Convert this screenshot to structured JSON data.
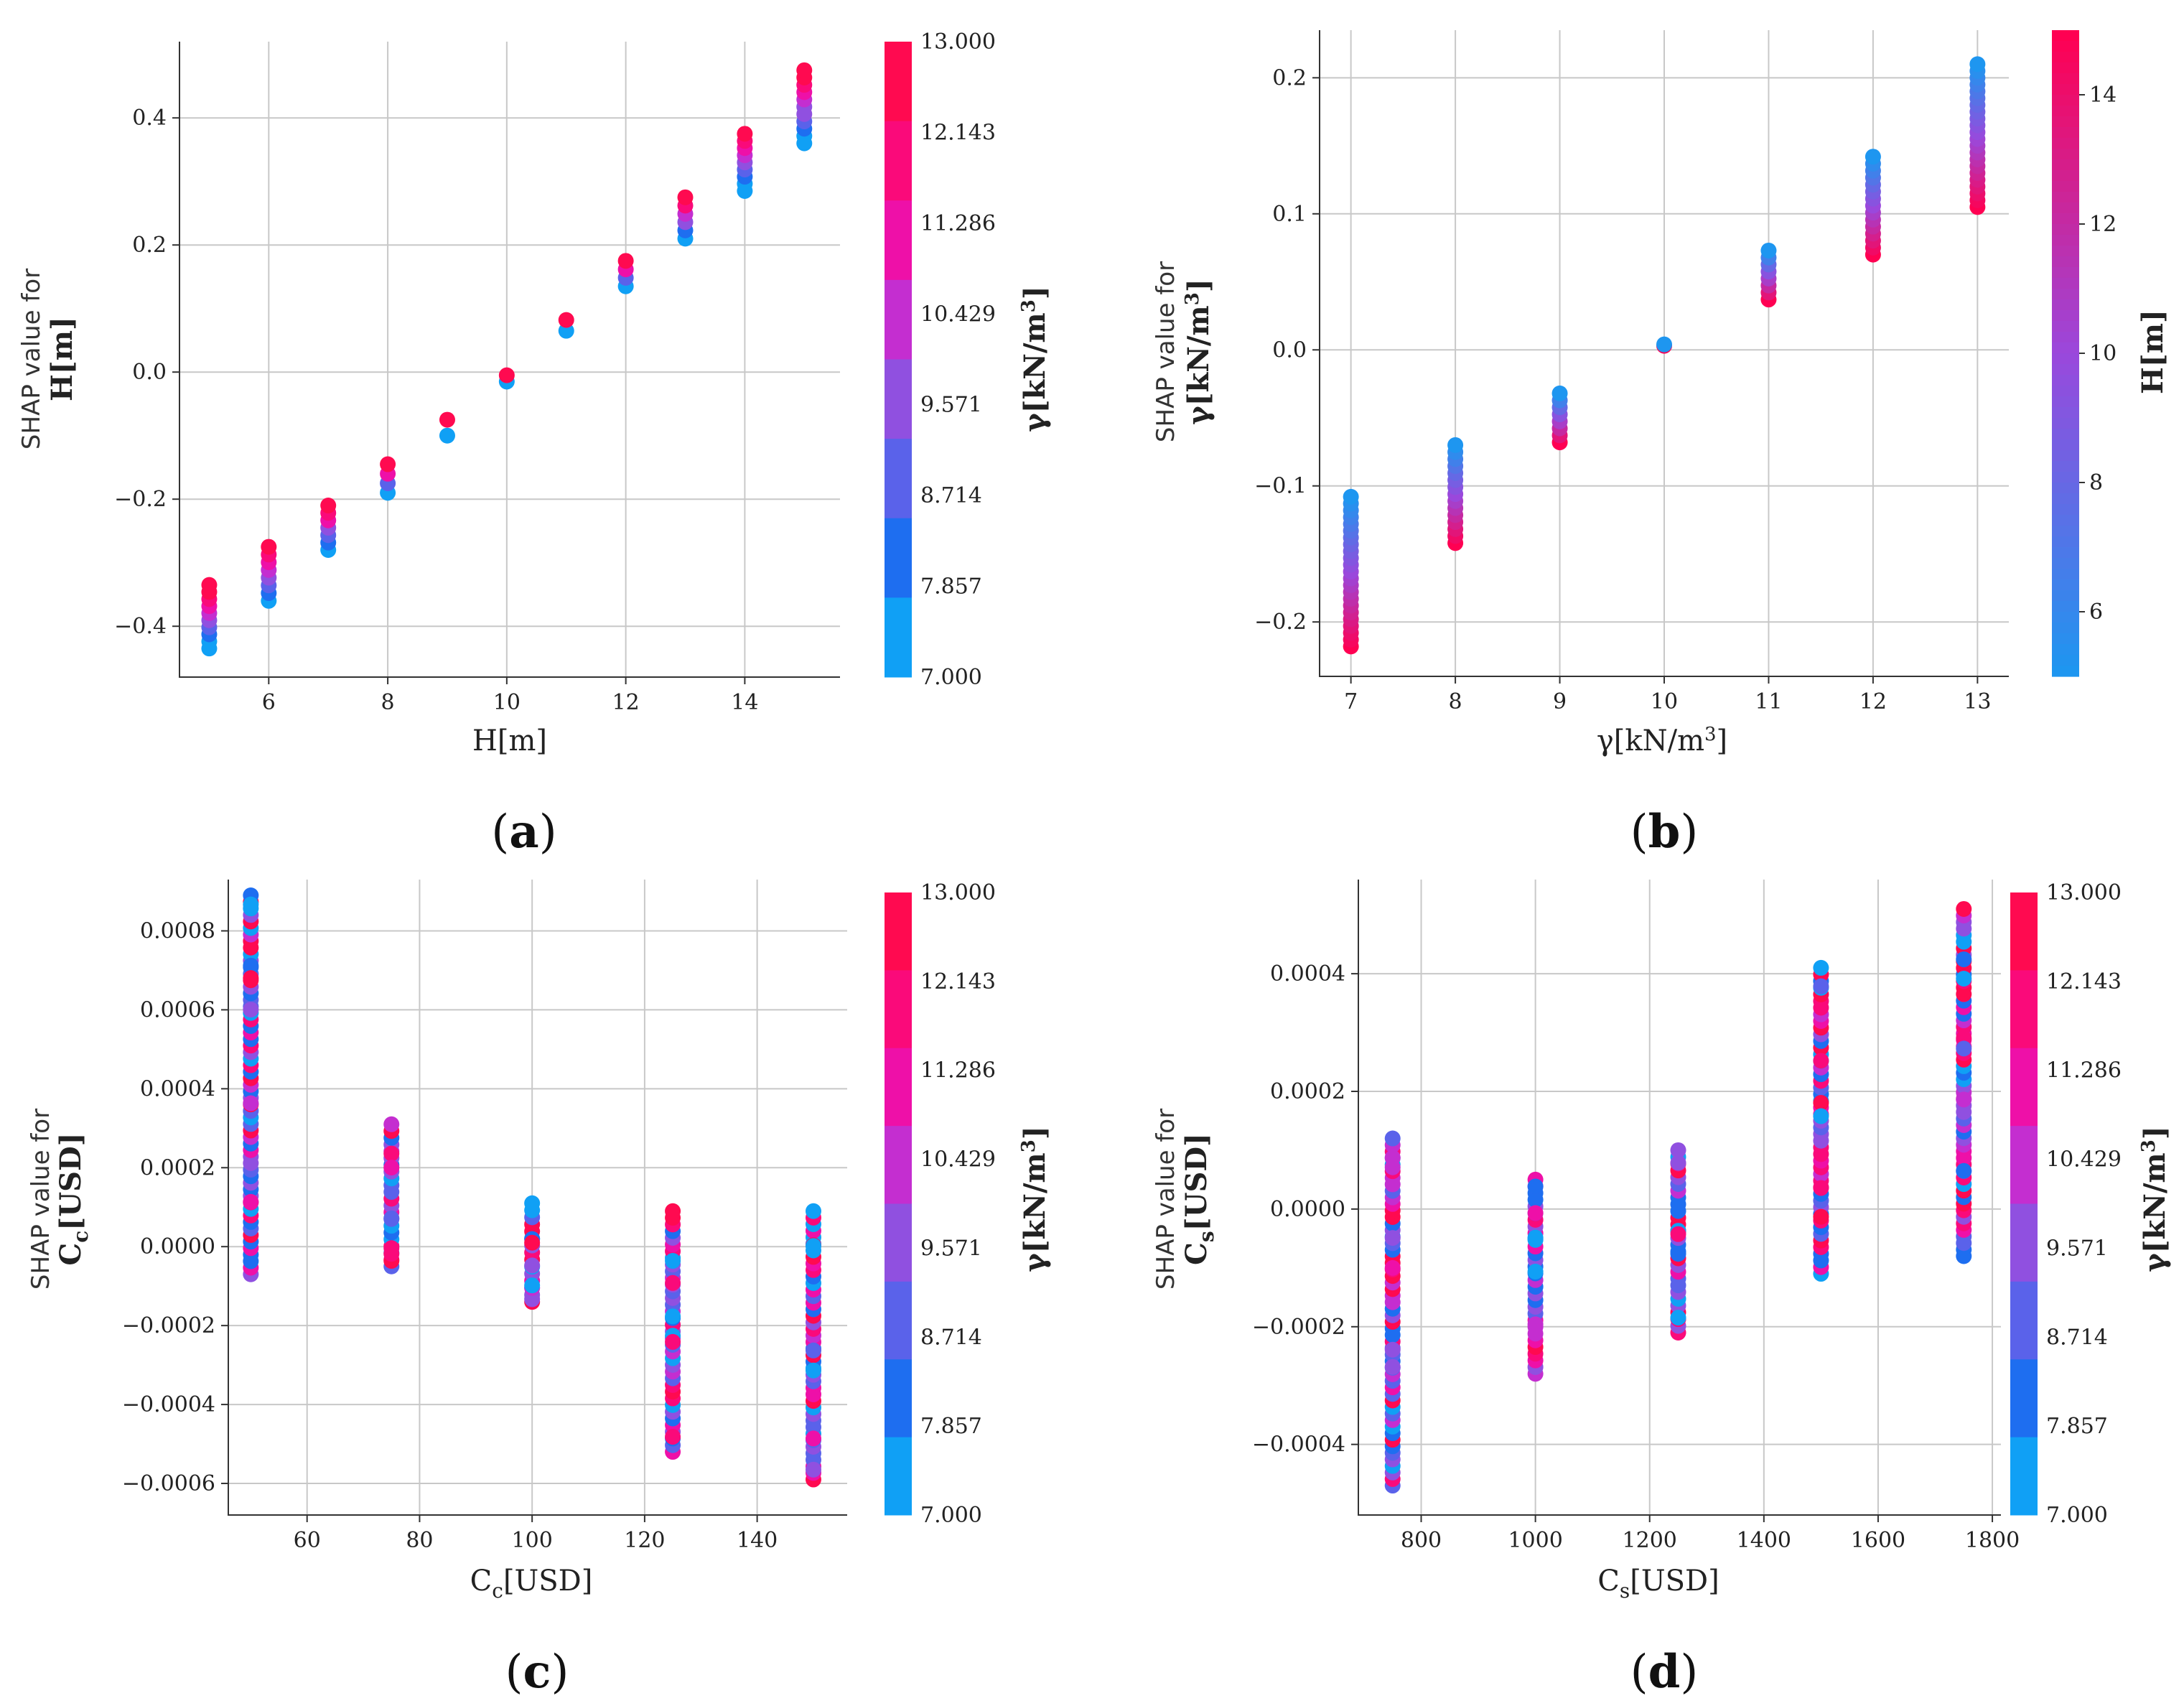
{
  "chart_data": [
    {
      "type": "scatter",
      "panel_label": "a",
      "xlabel": "H[m]",
      "ylabel": [
        "SHAP value for",
        "H[m]"
      ],
      "xlim": [
        4.5,
        15.6
      ],
      "ylim": [
        -0.48,
        0.52
      ],
      "xticks": [
        6,
        8,
        10,
        12,
        14
      ],
      "yticks": [
        -0.4,
        -0.2,
        0.0,
        0.2,
        0.4
      ],
      "ytick_labels": [
        "−0.4",
        "−0.2",
        "0.0",
        "0.2",
        "0.4"
      ],
      "grid": true,
      "color_trend": "high_top",
      "columns": [
        {
          "x": 5,
          "ymin": -0.435,
          "ymax": -0.335
        },
        {
          "x": 6,
          "ymin": -0.36,
          "ymax": -0.275
        },
        {
          "x": 7,
          "ymin": -0.28,
          "ymax": -0.21
        },
        {
          "x": 8,
          "ymin": -0.19,
          "ymax": -0.145
        },
        {
          "x": 9,
          "ymin": -0.1,
          "ymax": -0.075
        },
        {
          "x": 10,
          "ymin": -0.015,
          "ymax": -0.005
        },
        {
          "x": 11,
          "ymin": 0.065,
          "ymax": 0.082
        },
        {
          "x": 12,
          "ymin": 0.135,
          "ymax": 0.175
        },
        {
          "x": 13,
          "ymin": 0.21,
          "ymax": 0.275
        },
        {
          "x": 14,
          "ymin": 0.285,
          "ymax": 0.375
        },
        {
          "x": 15,
          "ymin": 0.36,
          "ymax": 0.475
        }
      ],
      "colorbar": {
        "label": "γ[kN/m³]",
        "label_main": "γ[kN/m",
        "label_sup": "3",
        "label_end": "]",
        "ticks": [
          "13.000",
          "12.143",
          "11.286",
          "10.429",
          "9.571",
          "8.714",
          "7.857",
          "7.000"
        ],
        "discrete": true
      }
    },
    {
      "type": "scatter",
      "panel_label": "b",
      "xlabel": "γ[kN/m³]",
      "xlabel_main": "γ[kN/m",
      "xlabel_sup": "3",
      "xlabel_end": "]",
      "ylabel": [
        "SHAP value for",
        "γ[kN/m³]"
      ],
      "ylabel_main": "γ[kN/m",
      "ylabel_sup": "3",
      "ylabel_end": "]",
      "xlim": [
        6.7,
        13.3
      ],
      "ylim": [
        -0.24,
        0.235
      ],
      "xticks": [
        7,
        8,
        9,
        10,
        11,
        12,
        13
      ],
      "yticks": [
        -0.2,
        -0.1,
        0.0,
        0.1,
        0.2
      ],
      "ytick_labels": [
        "−0.2",
        "−0.1",
        "0.0",
        "0.1",
        "0.2"
      ],
      "grid": true,
      "color_trend": "low_top",
      "columns": [
        {
          "x": 7,
          "ymin": -0.218,
          "ymax": -0.108
        },
        {
          "x": 8,
          "ymin": -0.142,
          "ymax": -0.07
        },
        {
          "x": 9,
          "ymin": -0.068,
          "ymax": -0.032
        },
        {
          "x": 10,
          "ymin": 0.003,
          "ymax": 0.004
        },
        {
          "x": 11,
          "ymin": 0.037,
          "ymax": 0.073
        },
        {
          "x": 12,
          "ymin": 0.07,
          "ymax": 0.142
        },
        {
          "x": 13,
          "ymin": 0.105,
          "ymax": 0.21
        }
      ],
      "colorbar": {
        "label": "H[m]",
        "ticks": [
          "14",
          "12",
          "10",
          "8",
          "6"
        ],
        "tick_values": [
          14,
          12,
          10,
          8,
          6
        ],
        "range": [
          5,
          15
        ],
        "discrete": false
      }
    },
    {
      "type": "scatter",
      "panel_label": "c",
      "xlabel": "Cc[USD]",
      "xlabel_main": "C",
      "xlabel_sub": "c",
      "xlabel_end": "[USD]",
      "ylabel": [
        "SHAP value for",
        "Cc[USD]"
      ],
      "ylabel_main": "C",
      "ylabel_sub": "c",
      "ylabel_end": "[USD]",
      "xlim": [
        46,
        156
      ],
      "ylim": [
        -0.00068,
        0.00093
      ],
      "xticks": [
        60,
        80,
        100,
        120,
        140
      ],
      "yticks": [
        -0.0006,
        -0.0004,
        -0.0002,
        0.0,
        0.0002,
        0.0004,
        0.0006,
        0.0008
      ],
      "ytick_labels": [
        "−0.0006",
        "−0.0004",
        "−0.0002",
        "0.0000",
        "0.0002",
        "0.0004",
        "0.0006",
        "0.0008"
      ],
      "grid": true,
      "color_trend": "mixed",
      "columns": [
        {
          "x": 50,
          "ymin": -7e-05,
          "ymax": 0.00089
        },
        {
          "x": 75,
          "ymin": -5e-05,
          "ymax": 0.00031
        },
        {
          "x": 100,
          "ymin": -0.00014,
          "ymax": 0.00011
        },
        {
          "x": 125,
          "ymin": -0.00052,
          "ymax": 9e-05
        },
        {
          "x": 150,
          "ymin": -0.00059,
          "ymax": 9e-05
        }
      ],
      "colorbar": {
        "label": "γ[kN/m³]",
        "label_main": "γ[kN/m",
        "label_sup": "3",
        "label_end": "]",
        "ticks": [
          "13.000",
          "12.143",
          "11.286",
          "10.429",
          "9.571",
          "8.714",
          "7.857",
          "7.000"
        ],
        "discrete": true
      }
    },
    {
      "type": "scatter",
      "panel_label": "d",
      "xlabel": "Cs[USD]",
      "xlabel_main": "C",
      "xlabel_sub": "s",
      "xlabel_end": "[USD]",
      "ylabel": [
        "SHAP value for",
        "Cs[USD]"
      ],
      "ylabel_main": "C",
      "ylabel_sub": "s",
      "ylabel_end": "[USD]",
      "xlim": [
        690,
        1815
      ],
      "ylim": [
        -0.00052,
        0.00056
      ],
      "xticks": [
        800,
        1000,
        1200,
        1400,
        1600,
        1800
      ],
      "yticks": [
        -0.0004,
        -0.0002,
        0.0,
        0.0002,
        0.0004
      ],
      "ytick_labels": [
        "−0.0004",
        "−0.0002",
        "0.0000",
        "0.0002",
        "0.0004"
      ],
      "grid": true,
      "color_trend": "mixed",
      "columns": [
        {
          "x": 750,
          "ymin": -0.00047,
          "ymax": 0.00012
        },
        {
          "x": 1000,
          "ymin": -0.00028,
          "ymax": 5e-05
        },
        {
          "x": 1250,
          "ymin": -0.00021,
          "ymax": 0.0001
        },
        {
          "x": 1500,
          "ymin": -0.00011,
          "ymax": 0.00041
        },
        {
          "x": 1750,
          "ymin": -8e-05,
          "ymax": 0.00051
        }
      ],
      "colorbar": {
        "label": "γ[kN/m³]",
        "label_main": "γ[kN/m",
        "label_sup": "3",
        "label_end": "]",
        "ticks": [
          "13.000",
          "12.143",
          "11.286",
          "10.429",
          "9.571",
          "8.714",
          "7.857",
          "7.000"
        ],
        "discrete": true
      }
    }
  ],
  "colors": {
    "low": "#1e96f0",
    "high": "#ff0052",
    "discrete_bands": [
      "#ff0a50",
      "#fa0a7a",
      "#ee10a8",
      "#c42ed0",
      "#9050e0",
      "#5a62ea",
      "#1e6ef0",
      "#10a0f5"
    ]
  }
}
